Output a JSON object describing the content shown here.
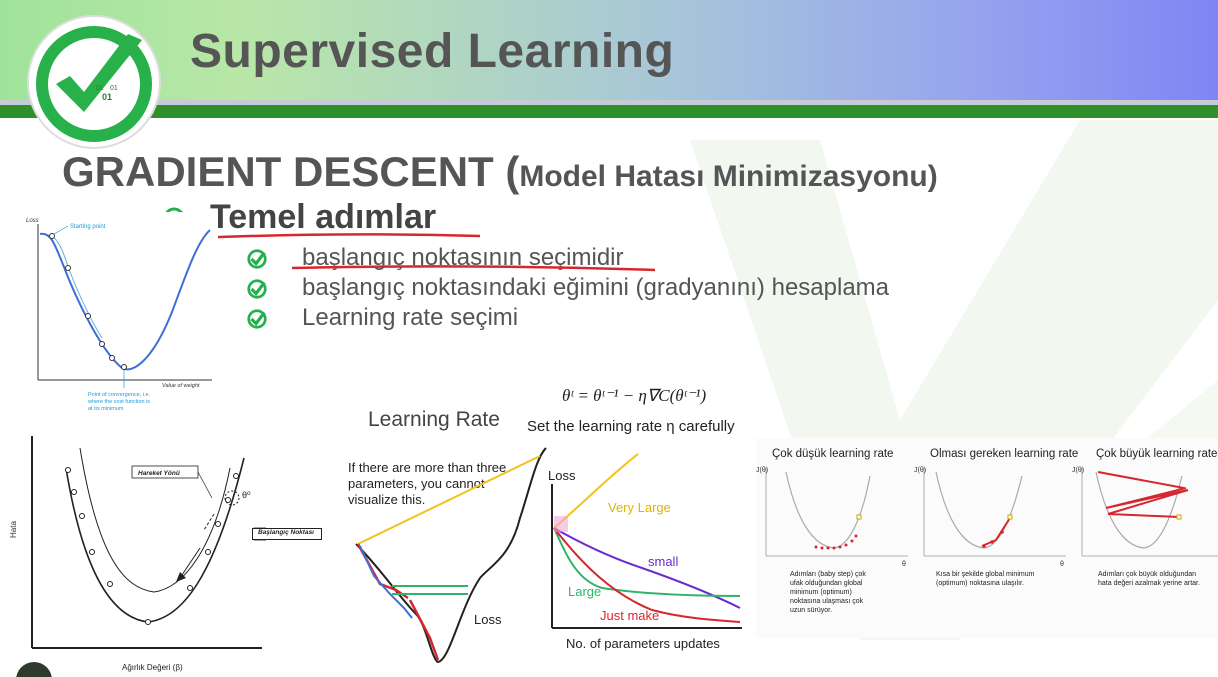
{
  "header": {
    "title": "Supervised Learning"
  },
  "logo": {
    "digits": [
      "01",
      "01",
      "01"
    ]
  },
  "heading": {
    "main": "GRADIENT DESCENT (",
    "sub": "Model Hatası Minimizasyonu)"
  },
  "section": {
    "title": "Temel adımlar",
    "bullets": [
      "başlangıç noktasının seçimidir",
      "başlangıç noktasındaki eğimini (gradyanını) hesaplama",
      "Learning rate seçimi"
    ]
  },
  "fig1": {
    "ylabel": "Loss",
    "start_label": "Starting point",
    "xlabel": "Value of weight",
    "conv_lines": [
      "Point of convergence, i.e.",
      "where the cost function is",
      "at its minimum"
    ]
  },
  "fig2": {
    "ylabel": "Hata",
    "xlabel": "Ağırlık Değeri (β)",
    "dir_label": "Hareket Yönü",
    "start_label": "Başlangıç Noktası",
    "theta": "θ⁰"
  },
  "fig3": {
    "title": "Learning Rate",
    "text_lines": [
      "If there are more than three",
      "parameters, you cannot",
      "visualize this."
    ],
    "loss_label": "Loss"
  },
  "fig4": {
    "formula": "θᵗ = θᵗ⁻¹ − η∇C(θᵗ⁻¹)",
    "caption": "Set the learning rate η carefully",
    "ylabel": "Loss",
    "xlabel": "No. of parameters updates",
    "very_large": "Very Large",
    "small": "small",
    "large": "Large",
    "just_make": "Just make"
  },
  "fig5": {
    "titles": [
      "Çok düşük learning rate",
      "Olması gereken learning rate",
      "Çok büyük learning rate"
    ],
    "axis_j": "J(θ)",
    "axis_theta": "θ",
    "desc1": [
      "Adımları (baby step) çok",
      "ufak olduğundan global",
      "minimum (optimum)",
      "noktasına ulaşması çok",
      "uzun sürüyor."
    ],
    "desc2": [
      "Kısa bir şekilde global minimum",
      "(optimum) noktasına ulaşılır."
    ],
    "desc3": [
      "Adımları çok büyük olduğundan",
      "hata değeri azalmak yerine artar."
    ]
  },
  "colors": {
    "accent_green": "#2f8f2a",
    "check_green": "#22b14c",
    "curve_blue": "#3f6fd6"
  }
}
